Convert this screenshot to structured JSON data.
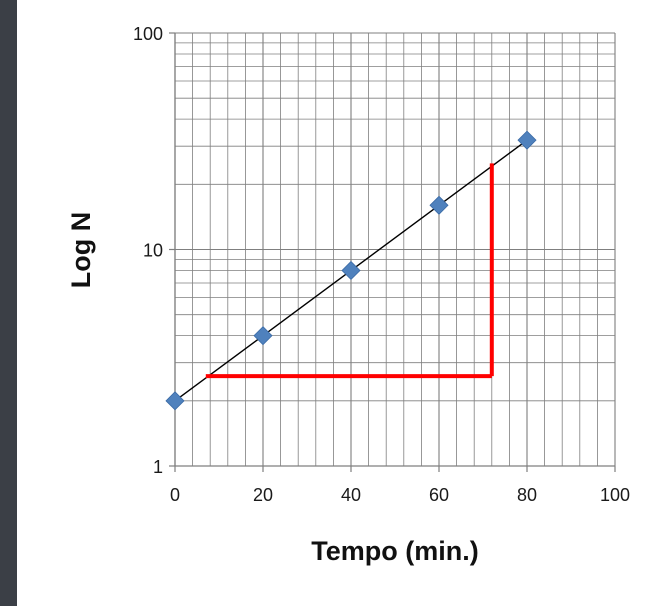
{
  "theme": {
    "background": "#3b3f46",
    "panel": "#ffffff",
    "grid_color": "#7f7f7f",
    "marker_color": "#4f81bd",
    "fit_line_color": "#000000",
    "annotation_color": "#ff0000"
  },
  "chart_data": {
    "type": "scatter",
    "title": "",
    "xlabel": "Tempo (min.)",
    "ylabel": "Log N",
    "xlim": [
      0,
      100
    ],
    "ylim": [
      1,
      100
    ],
    "yscale": "log",
    "grid": true,
    "legend": "none",
    "x_ticks": [
      0,
      20,
      40,
      60,
      80,
      100
    ],
    "x_tick_labels": [
      "0",
      "20",
      "40",
      "60",
      "80",
      "100"
    ],
    "y_ticks": [
      1,
      10,
      100
    ],
    "y_tick_labels": [
      "1",
      "10",
      "100"
    ],
    "series": [
      {
        "x": [
          0,
          20,
          40,
          60,
          80
        ],
        "y": [
          2,
          4,
          8,
          16,
          32
        ],
        "marker": "diamond"
      }
    ],
    "fit_line": {
      "x": [
        0,
        80
      ],
      "y": [
        2,
        32
      ]
    },
    "annotation_triangle": {
      "color": "#ff0000",
      "points": [
        [
          7,
          2.6
        ],
        [
          72,
          2.6
        ],
        [
          72,
          25
        ]
      ]
    }
  }
}
